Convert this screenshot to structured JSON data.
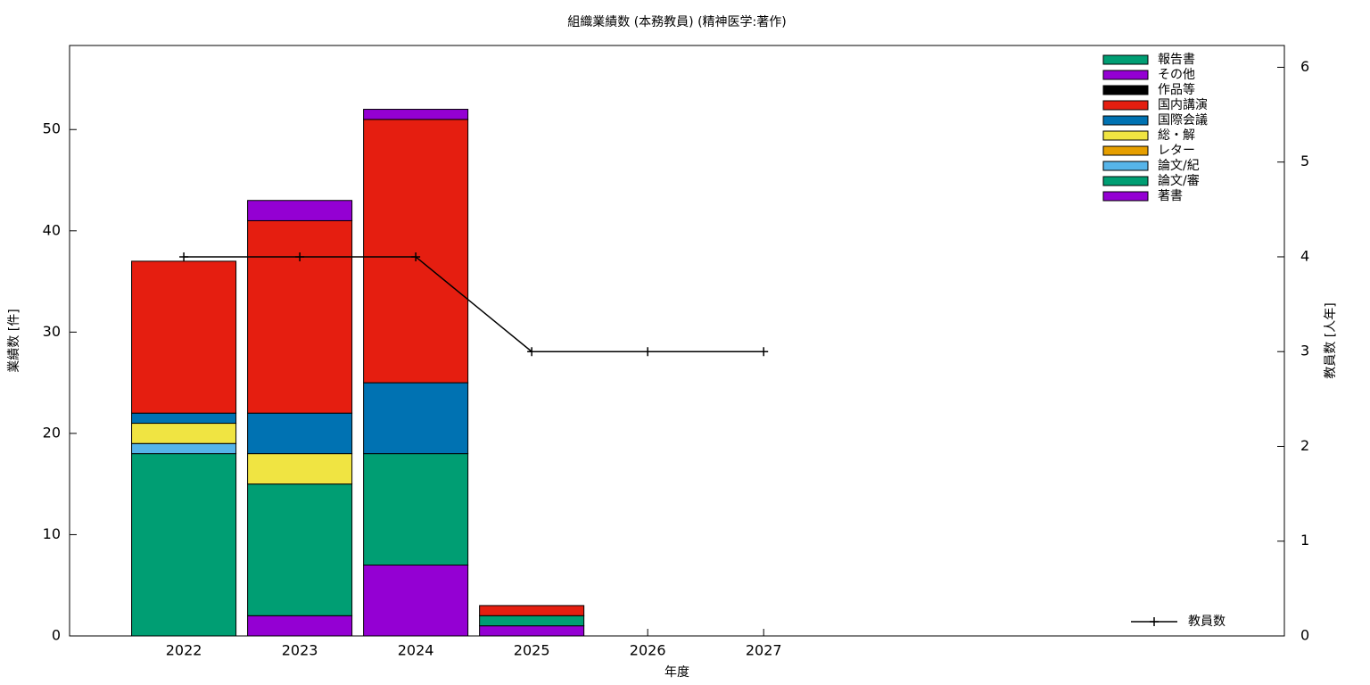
{
  "chart_data": {
    "type": "bar",
    "stacked": true,
    "title": "組織業績数 (本務教員) (精神医学:著作)",
    "xlabel": "年度",
    "ylabel": "業績数 [件]",
    "y2label": "教員数 [人年]",
    "x": [
      2022,
      2023,
      2024,
      2025,
      2026,
      2027
    ],
    "xlim": [
      2021.015,
      2031.49
    ],
    "xticks": [
      2022,
      2023,
      2024,
      2025,
      2026,
      2027
    ],
    "ylim": [
      0,
      58.3
    ],
    "yticks": [
      0,
      10,
      20,
      30,
      40,
      50
    ],
    "y2lim": [
      0,
      6.23
    ],
    "y2ticks": [
      0,
      1,
      2,
      3,
      4,
      5,
      6
    ],
    "legend": "upper right",
    "series": [
      {
        "name": "著書",
        "color": "#9400d3",
        "values": [
          0,
          2,
          7,
          1,
          0,
          0
        ]
      },
      {
        "name": "論文/審",
        "color": "#009e73",
        "values": [
          18,
          13,
          11,
          1,
          0,
          0
        ]
      },
      {
        "name": "論文/紀",
        "color": "#56b4e9",
        "values": [
          1,
          0,
          0,
          0,
          0,
          0
        ]
      },
      {
        "name": "レター",
        "color": "#e69f00",
        "values": [
          0,
          0,
          0,
          0,
          0,
          0
        ]
      },
      {
        "name": "総・解",
        "color": "#f0e442",
        "values": [
          2,
          3,
          0,
          0,
          0,
          0
        ]
      },
      {
        "name": "国際会議",
        "color": "#0072b2",
        "values": [
          1,
          4,
          7,
          0,
          0,
          0
        ]
      },
      {
        "name": "国内講演",
        "color": "#e51e10",
        "values": [
          15,
          19,
          26,
          1,
          0,
          0
        ]
      },
      {
        "name": "作品等",
        "color": "#000000",
        "values": [
          0,
          0,
          0,
          0,
          0,
          0
        ]
      },
      {
        "name": "その他",
        "color": "#9400d3",
        "values": [
          0,
          2,
          1,
          0,
          0,
          0
        ]
      },
      {
        "name": "報告書",
        "color": "#009e73",
        "values": [
          0,
          0,
          0,
          0,
          0,
          0
        ]
      },
      {
        "name": "教員数",
        "type": "line",
        "axis": "y2",
        "color": "#000000",
        "values": [
          4,
          4,
          4,
          3,
          3,
          3
        ]
      }
    ]
  }
}
